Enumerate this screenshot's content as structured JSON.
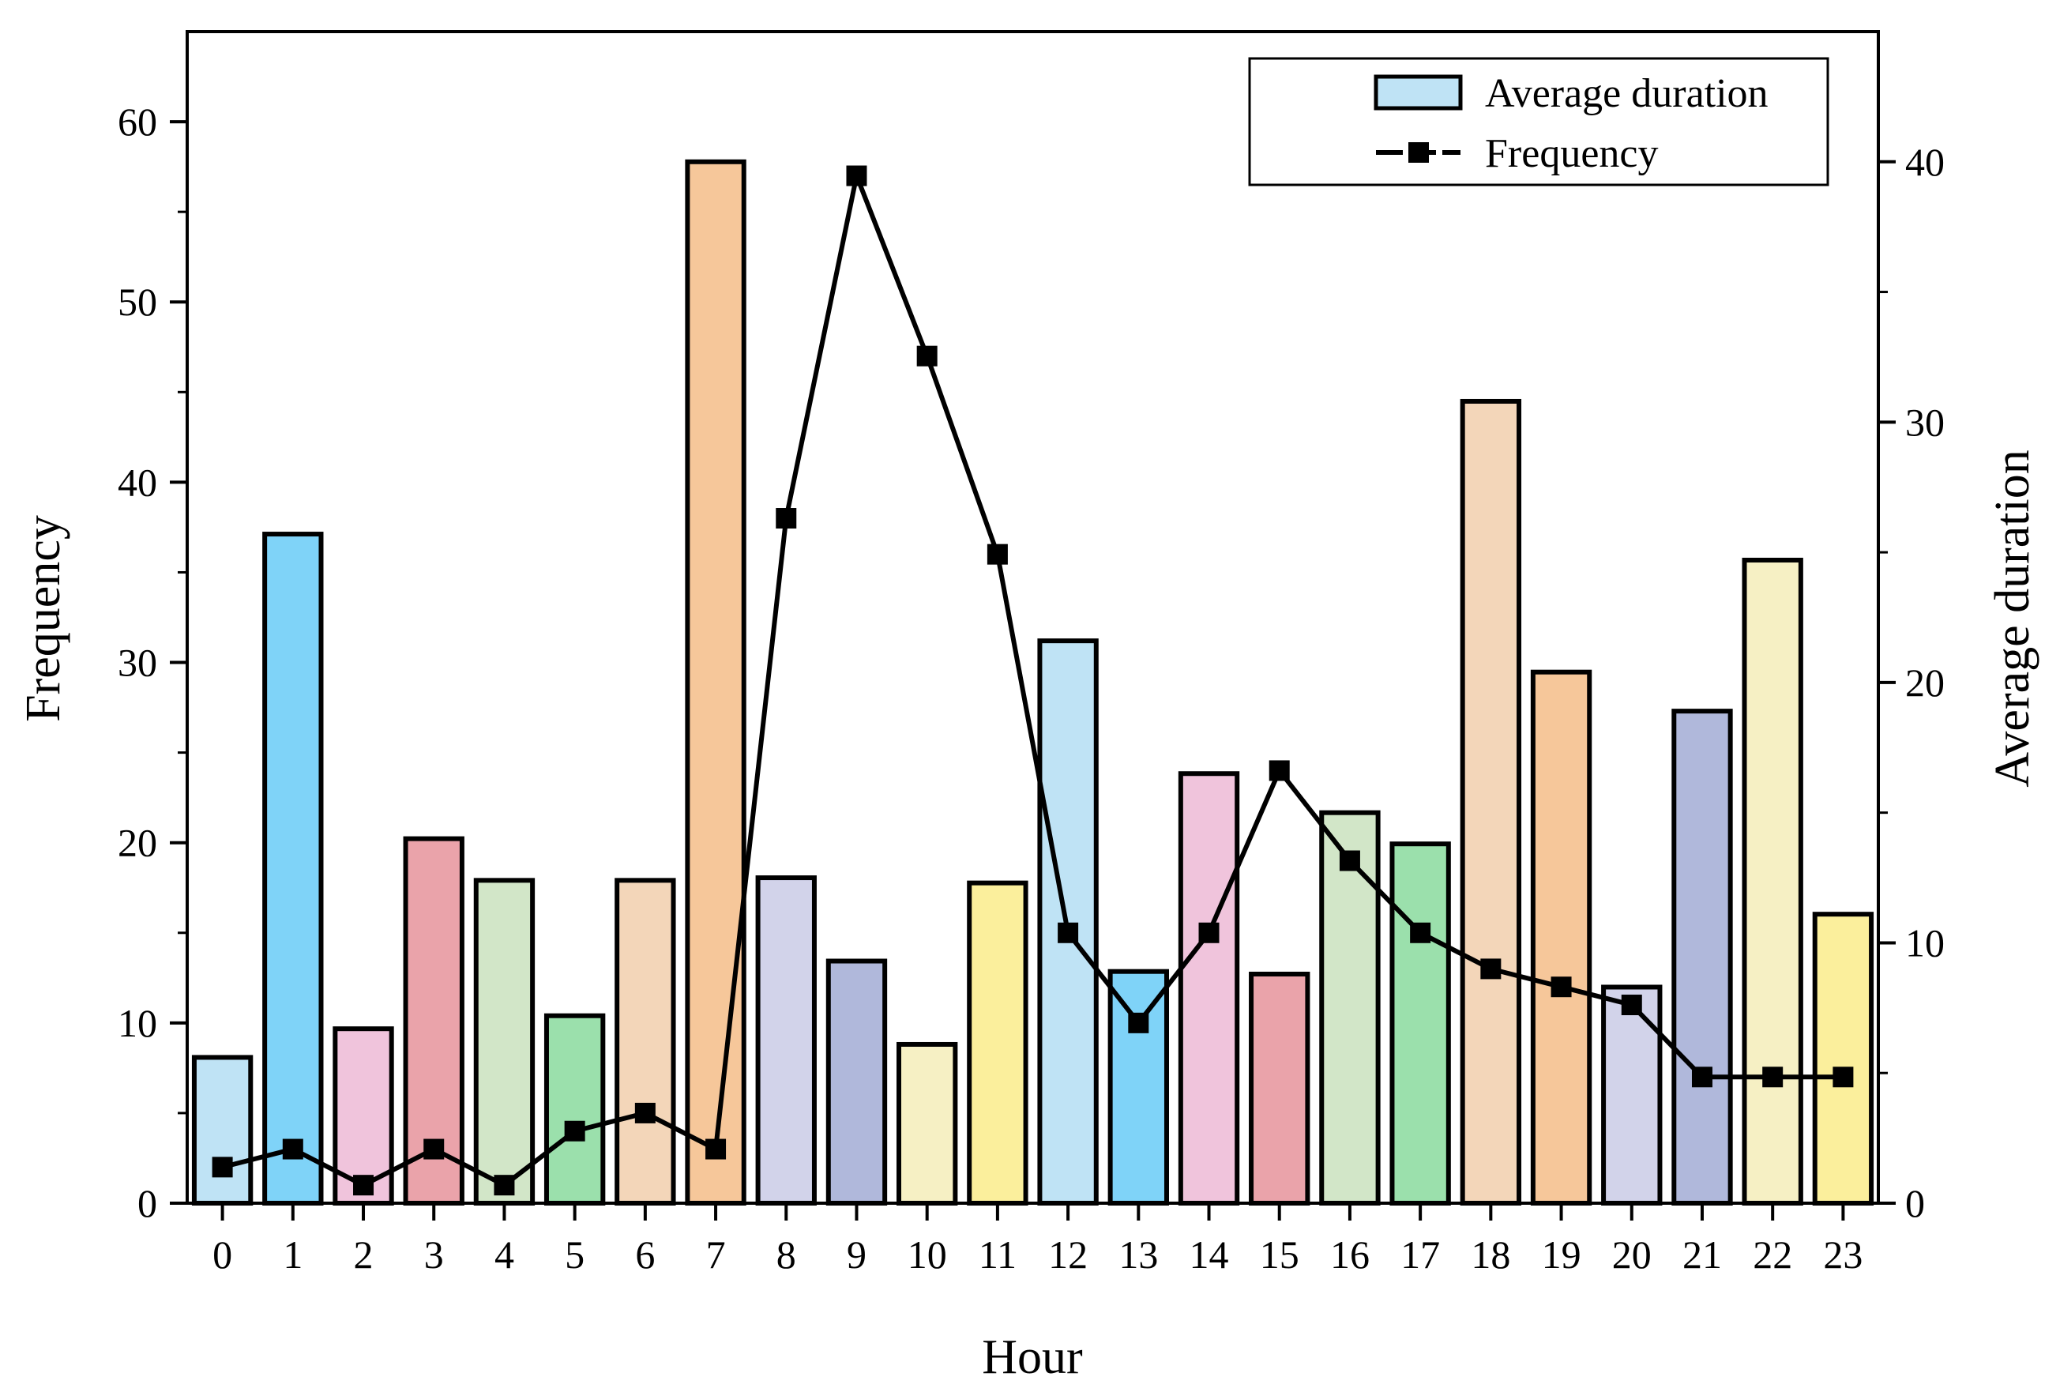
{
  "chart_data": {
    "type": "bar+line",
    "xlabel": "Hour",
    "ylabel_left": "Frequency",
    "ylabel_right": "Average duration",
    "categories": [
      "0",
      "1",
      "2",
      "3",
      "4",
      "5",
      "6",
      "7",
      "8",
      "9",
      "10",
      "11",
      "12",
      "13",
      "14",
      "15",
      "16",
      "17",
      "18",
      "19",
      "20",
      "21",
      "22",
      "23"
    ],
    "left_axis": {
      "range": [
        0,
        65
      ],
      "ticks": [
        0,
        10,
        20,
        30,
        40,
        50,
        60
      ]
    },
    "right_axis": {
      "range": [
        0,
        45
      ],
      "ticks": [
        0,
        10,
        20,
        30,
        40
      ]
    },
    "series": [
      {
        "name": "Average duration",
        "kind": "bar",
        "axis": "right",
        "values": [
          5.6,
          25.7,
          6.7,
          14.0,
          12.4,
          7.2,
          12.4,
          40.0,
          12.5,
          9.3,
          6.1,
          12.3,
          21.6,
          8.9,
          16.5,
          8.8,
          15.0,
          13.8,
          30.8,
          20.4,
          8.3,
          18.9,
          24.7,
          11.1
        ],
        "colors": [
          "#bfe3f5",
          "#7fd3f8",
          "#f0c4dc",
          "#eaa3aa",
          "#d2e6c8",
          "#9be0ac",
          "#f3d6b9",
          "#f6c79a",
          "#d2d3ea",
          "#b0b8db",
          "#f6f0c4",
          "#fbef9c",
          "#bfe3f5",
          "#7fd3f8",
          "#f0c4dc",
          "#eaa3aa",
          "#d2e6c8",
          "#9be0ac",
          "#f3d6b9",
          "#f6c79a",
          "#d2d3ea",
          "#b0b8db",
          "#f6f0c4",
          "#fbef9c"
        ]
      },
      {
        "name": "Frequency",
        "kind": "line",
        "axis": "left",
        "values": [
          2,
          3,
          1,
          3,
          1,
          4,
          5,
          3,
          38,
          57,
          47,
          36,
          15,
          10,
          15,
          24,
          19,
          15,
          13,
          12,
          11,
          7,
          7,
          7
        ]
      }
    ],
    "legend": {
      "placement": "top-right",
      "entries": [
        "Average duration",
        "Frequency"
      ]
    }
  }
}
